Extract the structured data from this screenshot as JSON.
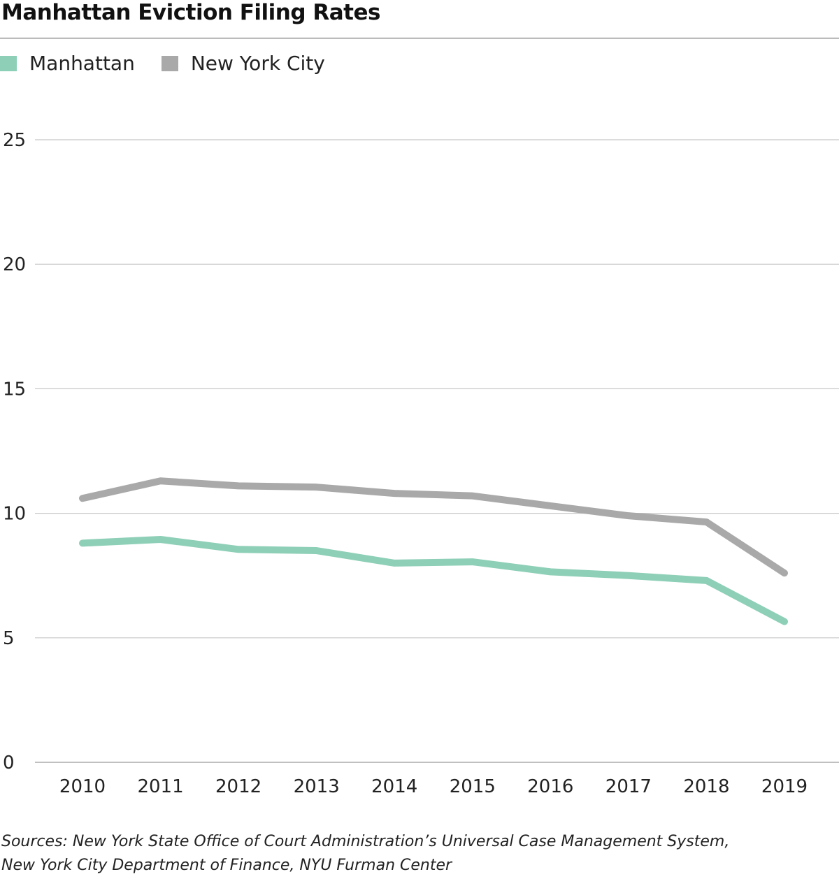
{
  "chart_data": {
    "type": "line",
    "title": "Manhattan Eviction Filing Rates",
    "xlabel": "",
    "ylabel": "",
    "x": [
      "2010",
      "2011",
      "2012",
      "2013",
      "2014",
      "2015",
      "2016",
      "2017",
      "2018",
      "2019"
    ],
    "ylim": [
      0,
      25
    ],
    "yticks": [
      "0",
      "5",
      "10",
      "15",
      "20",
      "25"
    ],
    "grid": true,
    "legend_position": "top-left",
    "series": [
      {
        "name": "Manhattan",
        "color": "#8ecfb7",
        "values": [
          8.8,
          8.95,
          8.55,
          8.5,
          8.0,
          8.05,
          7.65,
          7.5,
          7.3,
          5.65
        ]
      },
      {
        "name": "New York City",
        "color": "#a9a9a9",
        "values": [
          10.6,
          11.3,
          11.1,
          11.05,
          10.8,
          10.7,
          10.3,
          9.9,
          9.65,
          7.6
        ]
      }
    ]
  },
  "source_line1": "Sources: New York State Office of Court Administration’s Universal Case Management System,",
  "source_line2": "New York City Department of Finance, NYU Furman Center"
}
